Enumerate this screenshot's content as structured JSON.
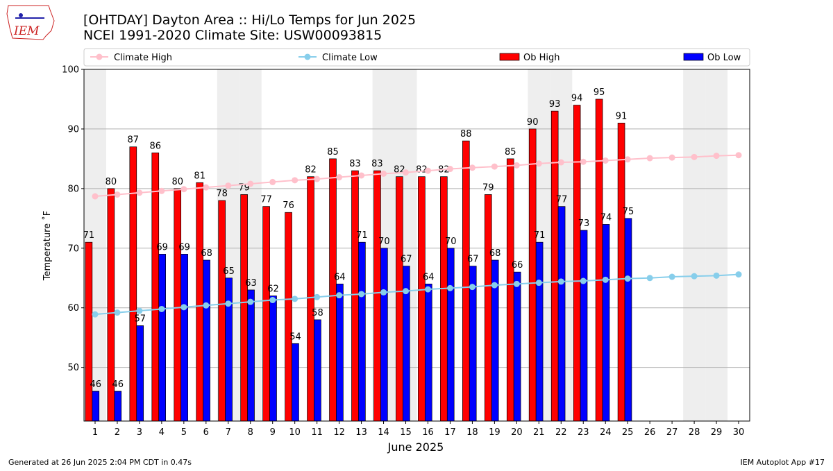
{
  "logo": "IEM",
  "footer_left": "Generated at 26 Jun 2025 2:04 PM CDT in 0.47s",
  "footer_right": "IEM Autoplot App #17",
  "chart_data": {
    "type": "bar",
    "title": "[OHTDAY] Dayton Area :: Hi/Lo Temps for Jun 2025",
    "subtitle": "NCEI 1991-2020 Climate Site: USW00093815",
    "xlabel": "June 2025",
    "ylabel": "Temperature ˚F",
    "x": [
      1,
      2,
      3,
      4,
      5,
      6,
      7,
      8,
      9,
      10,
      11,
      12,
      13,
      14,
      15,
      16,
      17,
      18,
      19,
      20,
      21,
      22,
      23,
      24,
      25,
      26,
      27,
      28,
      29,
      30
    ],
    "xlim": [
      0.5,
      30.5
    ],
    "xticks": [
      1,
      2,
      3,
      4,
      5,
      6,
      7,
      8,
      9,
      10,
      11,
      12,
      13,
      14,
      15,
      16,
      17,
      18,
      19,
      20,
      21,
      22,
      23,
      24,
      25,
      26,
      27,
      28,
      29,
      30
    ],
    "ylim": [
      41,
      100
    ],
    "yticks": [
      50,
      60,
      70,
      80,
      90,
      100
    ],
    "grid": true,
    "shaded_days": [
      1,
      7,
      8,
      14,
      15,
      21,
      22,
      28,
      29
    ],
    "shade_color": "#eeeeee",
    "legend": "top",
    "series": [
      {
        "name": "Climate High",
        "kind": "line",
        "color": "#ffc0cb",
        "values": [
          78.7,
          79.0,
          79.3,
          79.6,
          79.9,
          80.2,
          80.5,
          80.8,
          81.1,
          81.4,
          81.6,
          81.9,
          82.2,
          82.5,
          82.7,
          83.0,
          83.3,
          83.5,
          83.7,
          83.9,
          84.2,
          84.4,
          84.5,
          84.7,
          84.9,
          85.1,
          85.2,
          85.3,
          85.5,
          85.6
        ]
      },
      {
        "name": "Climate Low",
        "kind": "line",
        "color": "#87ceeb",
        "values": [
          58.9,
          59.2,
          59.5,
          59.8,
          60.1,
          60.4,
          60.7,
          61.0,
          61.3,
          61.5,
          61.8,
          62.1,
          62.3,
          62.6,
          62.8,
          63.1,
          63.3,
          63.5,
          63.8,
          64.0,
          64.2,
          64.4,
          64.5,
          64.7,
          64.9,
          65.0,
          65.2,
          65.3,
          65.4,
          65.6
        ]
      },
      {
        "name": "Ob High",
        "kind": "bar",
        "color": "#ff0000",
        "values": [
          71,
          80,
          87,
          86,
          80,
          81,
          78,
          79,
          77,
          76,
          82,
          85,
          83,
          83,
          82,
          82,
          82,
          88,
          79,
          85,
          90,
          93,
          94,
          95,
          91,
          null,
          null,
          null,
          null,
          null
        ]
      },
      {
        "name": "Ob Low",
        "kind": "bar",
        "color": "#0000ff",
        "values": [
          46,
          46,
          57,
          69,
          69,
          68,
          65,
          63,
          62,
          54,
          58,
          64,
          71,
          70,
          67,
          64,
          70,
          67,
          68,
          66,
          71,
          77,
          73,
          74,
          75,
          null,
          null,
          null,
          null,
          null
        ]
      }
    ]
  }
}
